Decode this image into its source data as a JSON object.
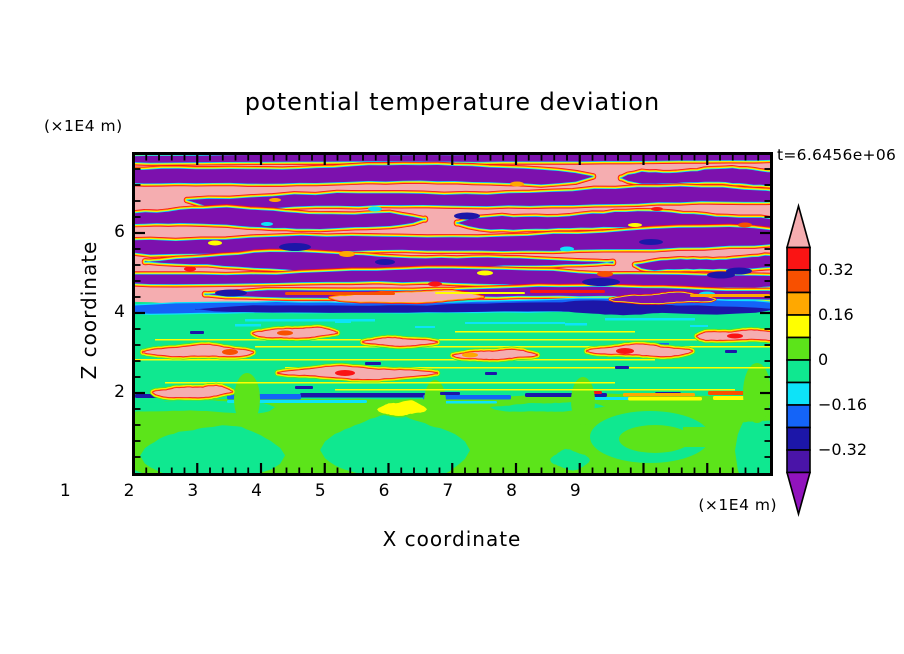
{
  "title": "potential temperature deviation",
  "annotations": {
    "y_unit": "(×1E4 m)",
    "x_unit": "(×1E4 m)",
    "timestamp": "t=6.6456e+06"
  },
  "axes": {
    "x_label": "X coordinate",
    "y_label": "Z coordinate",
    "x_ticks": [
      "1",
      "2",
      "3",
      "4",
      "5",
      "6",
      "7",
      "8",
      "9"
    ],
    "y_ticks": [
      "2",
      "4",
      "6"
    ]
  },
  "colorbar": {
    "labels": [
      "0.32",
      "0.16",
      "0",
      "−0.16",
      "−0.32"
    ],
    "segment_colors": [
      "#FA1414",
      "#F85000",
      "#FFA800",
      "#FFFF00",
      "#5CE41A",
      "#0FE890",
      "#0DE3F8",
      "#1464F8",
      "#1C16A8",
      "#4A14A8"
    ],
    "over_color": "#F5ADB0",
    "under_color": "#9113BD",
    "outline_color": "#000000"
  },
  "palette": {
    "pink": "#F5ADB0",
    "red": "#FA1414",
    "orangered": "#F85000",
    "orange": "#FFA800",
    "yellow": "#FFFF00",
    "chart": "#5CE41A",
    "spring": "#0FE890",
    "cyan": "#0DE3F8",
    "blue": "#1464F8",
    "navy": "#1C16A8",
    "indigo": "#4A14A8",
    "purple": "#7C11AE"
  },
  "chart_data": {
    "type": "heatmap",
    "title": "potential temperature deviation",
    "xlabel": "X coordinate",
    "ylabel": "Z coordinate",
    "x_unit": "(×1E4 m)",
    "y_unit": "(×1E4 m)",
    "xlim": [
      0,
      10
    ],
    "ylim": [
      0,
      8
    ],
    "x_ticks": [
      1,
      2,
      3,
      4,
      5,
      6,
      7,
      8,
      9
    ],
    "y_ticks": [
      2,
      4,
      6
    ],
    "x_minor_tick_step": 0.2,
    "y_minor_tick_step": 0.4,
    "time_annotation": "t=6.6456e+06",
    "grid": false,
    "legend_position": "right",
    "colorbar_tick_values": [
      0.32,
      0.16,
      0,
      -0.16,
      -0.32
    ],
    "contour_interval": 0.08,
    "value_range_shown": [
      -0.4,
      0.4
    ],
    "field_structure": [
      {
        "z_range": [
          4.2,
          8.0
        ],
        "description": "stratified braided layers alternating above-scale positive deviation (pink, >0.4) and below-scale negative deviation (purple, <-0.4) with thin rainbow contour rims and scattered navy cores"
      },
      {
        "z_range": [
          3.8,
          4.2
        ],
        "description": "strong negative shear band (blue/navy) with pink and purple patches and warm red/orange filaments above"
      },
      {
        "z_range": [
          2.1,
          3.8
        ],
        "description": "near-zero deviation region (spring green, ~0 to -0.08) with elongated warm pink/red intrusions and thin yellow filaments"
      },
      {
        "z_range": [
          1.85,
          2.1
        ],
        "description": "sharp inversion line with alternating navy/blue/cyan and red/orange/yellow segments"
      },
      {
        "z_range": [
          0.0,
          1.85
        ],
        "description": "convective mixed layer of weakly positive (green-yellow, 0 to 0.08) and near-zero (spring green) lobes, swirl near x=8, yellow plume near x=4"
      }
    ]
  }
}
